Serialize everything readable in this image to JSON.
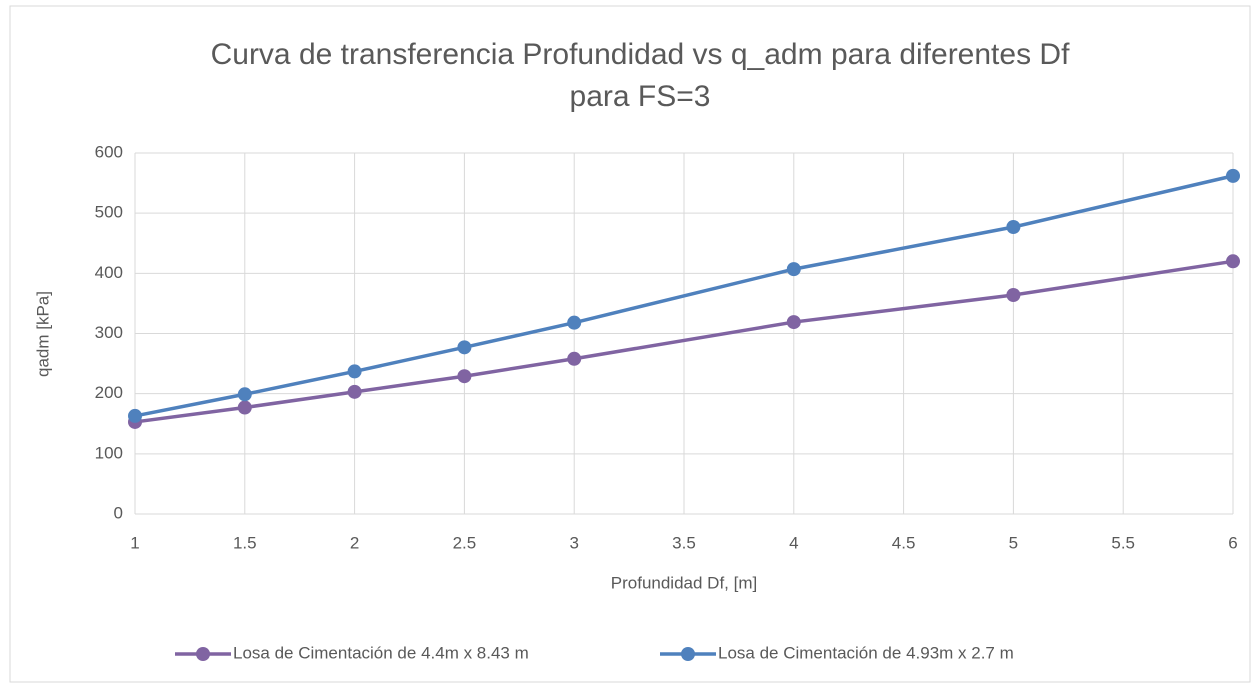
{
  "chart_data": {
    "type": "line",
    "title": [
      "Curva de transferencia  Profundidad vs q_adm para diferentes Df",
      "para FS=3"
    ],
    "x_label": "Profundidad Df, [m]",
    "y_label": "qadm [kPa]",
    "x": [
      1,
      1.5,
      2,
      2.5,
      3,
      4,
      5,
      6
    ],
    "series": [
      {
        "name": "Losa de Cimentación de 4.4m x 8.43 m",
        "color": "#8064a2",
        "values": [
          153,
          177,
          203,
          229,
          258,
          319,
          364,
          420
        ]
      },
      {
        "name": "Losa de Cimentación de 4.93m x 2.7 m",
        "color": "#4f81bd",
        "values": [
          163,
          199,
          237,
          277,
          318,
          407,
          477,
          562
        ]
      }
    ],
    "xlim": [
      1,
      6
    ],
    "xticks": [
      1,
      1.5,
      2,
      2.5,
      3,
      3.5,
      4,
      4.5,
      5,
      5.5,
      6
    ],
    "ylim": [
      0,
      600
    ],
    "yticks": [
      0,
      100,
      200,
      300,
      400,
      500,
      600
    ],
    "grid": true,
    "legend": "bottom"
  }
}
